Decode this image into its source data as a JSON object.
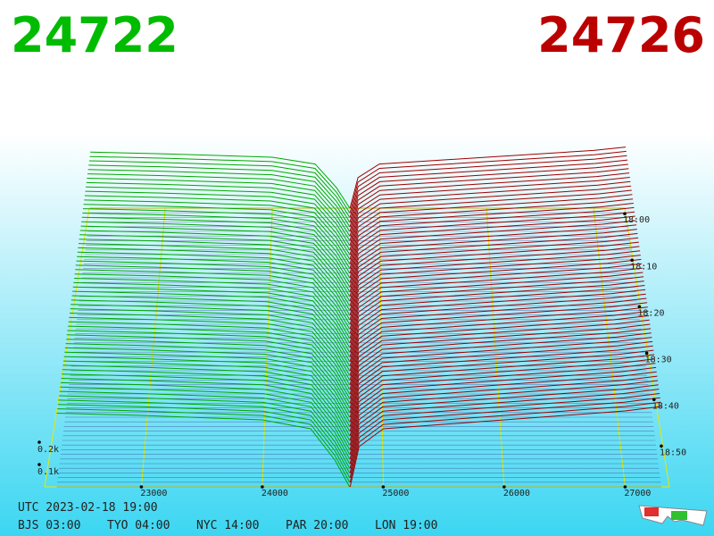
{
  "chart_data": {
    "type": "depth",
    "bid": 24722,
    "ask": 24726,
    "bid_color": "#00bb00",
    "ask_color": "#bb0000",
    "series": [
      {
        "color": "#00a800",
        "x": [
          22300,
          23000,
          24000,
          24400,
          24600,
          24722
        ],
        "values": [
          330,
          320,
          300,
          260,
          120,
          0
        ]
      },
      {
        "color": "#a00000",
        "x": [
          24726,
          24800,
          25000,
          26000,
          27000,
          27300
        ],
        "values": [
          0,
          180,
          260,
          300,
          340,
          360
        ]
      }
    ],
    "xticks": [
      23000,
      24000,
      25000,
      26000,
      27000
    ],
    "yticks": [
      {
        "value": 100,
        "label": "0.1k"
      },
      {
        "value": 200,
        "label": "0.2k"
      }
    ],
    "time_ticks": [
      "18:00",
      "18:10",
      "18:20",
      "18:30",
      "18:40",
      "18:50"
    ],
    "footer": {
      "utc": "UTC 2023-02-18 19:00",
      "zones": [
        "BJS 03:00",
        "TYO 04:00",
        "NYC 14:00",
        "PAR 20:00",
        "LON 19:00"
      ]
    },
    "grid_color": "#e8e800"
  }
}
